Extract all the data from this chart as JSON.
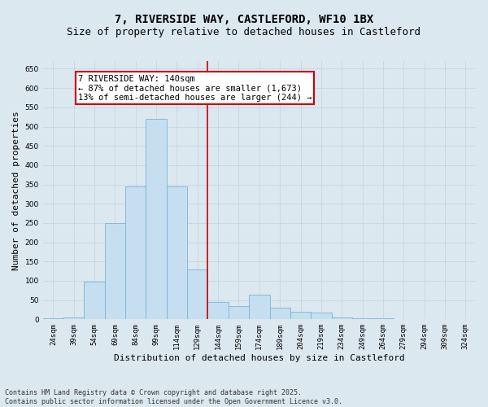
{
  "title_line1": "7, RIVERSIDE WAY, CASTLEFORD, WF10 1BX",
  "title_line2": "Size of property relative to detached houses in Castleford",
  "xlabel": "Distribution of detached houses by size in Castleford",
  "ylabel": "Number of detached properties",
  "categories": [
    "24sqm",
    "39sqm",
    "54sqm",
    "69sqm",
    "84sqm",
    "99sqm",
    "114sqm",
    "129sqm",
    "144sqm",
    "159sqm",
    "174sqm",
    "189sqm",
    "204sqm",
    "219sqm",
    "234sqm",
    "249sqm",
    "264sqm",
    "279sqm",
    "294sqm",
    "309sqm",
    "324sqm"
  ],
  "values": [
    2,
    5,
    98,
    250,
    345,
    520,
    345,
    130,
    45,
    35,
    65,
    30,
    20,
    18,
    5,
    3,
    2,
    1,
    0,
    1,
    1
  ],
  "bar_color": "#c5dff0",
  "bar_edge_color": "#7ab4d4",
  "bar_linewidth": 0.6,
  "vline_x": 7.5,
  "annotation_text": "7 RIVERSIDE WAY: 140sqm\n← 87% of detached houses are smaller (1,673)\n13% of semi-detached houses are larger (244) →",
  "annotation_box_color": "#ffffff",
  "annotation_edge_color": "#cc0000",
  "vline_color": "#cc0000",
  "grid_color": "#c5d5e5",
  "background_color": "#dce8f0",
  "ylim": [
    0,
    670
  ],
  "yticks": [
    0,
    50,
    100,
    150,
    200,
    250,
    300,
    350,
    400,
    450,
    500,
    550,
    600,
    650
  ],
  "footnote": "Contains HM Land Registry data © Crown copyright and database right 2025.\nContains public sector information licensed under the Open Government Licence v3.0.",
  "title_fontsize": 10,
  "subtitle_fontsize": 9,
  "axis_label_fontsize": 8,
  "tick_fontsize": 6.5,
  "annotation_fontsize": 7.5,
  "footnote_fontsize": 6
}
